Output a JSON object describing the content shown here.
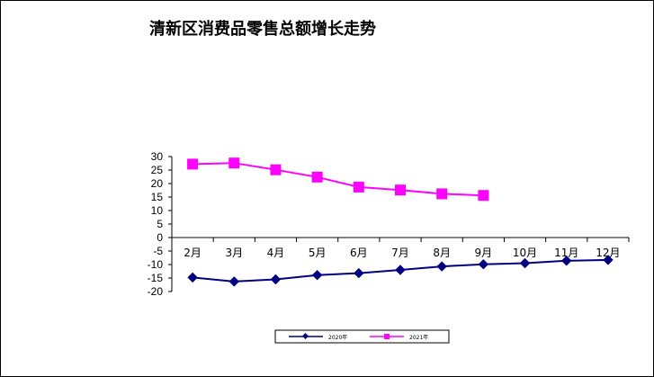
{
  "chart_data": {
    "type": "line",
    "title": "清新区消费品零售总额增长走势",
    "categories": [
      "2月",
      "3月",
      "4月",
      "5月",
      "6月",
      "7月",
      "8月",
      "9月",
      "10月",
      "11月",
      "12月"
    ],
    "series": [
      {
        "name": "2020年",
        "color": "#000080",
        "marker": "diamond",
        "values": [
          -14.8,
          -16.3,
          -15.5,
          -13.9,
          -13.2,
          -12.0,
          -10.7,
          -9.9,
          -9.5,
          -8.6,
          -8.3
        ]
      },
      {
        "name": "2021年",
        "color": "#ff00ff",
        "marker": "square",
        "values": [
          27.2,
          27.6,
          25.1,
          22.4,
          18.7,
          17.6,
          16.2,
          15.6,
          null,
          null,
          null
        ]
      }
    ],
    "yticks": [
      30,
      25,
      20,
      15,
      10,
      5,
      0,
      -5,
      -10,
      -15,
      -20
    ],
    "ylim": [
      -20,
      30
    ],
    "grid": false,
    "legend": "bottom"
  }
}
